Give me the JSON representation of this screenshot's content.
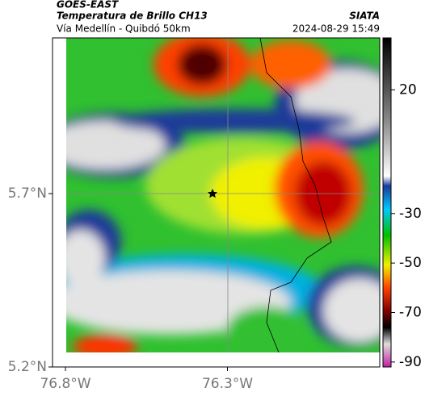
{
  "header": {
    "title": "GOES-EAST",
    "subtitle": "Temperatura de Brillo CH13",
    "region": "Vía Medellín - Quibdó 50km",
    "source": "SIATA",
    "datetime": "2024-08-29 15:49"
  },
  "map": {
    "xlim": [
      -76.84,
      -75.83
    ],
    "ylim": [
      5.2,
      6.149
    ],
    "xticks": [
      {
        "value": -76.8,
        "label": "76.8°W"
      },
      {
        "value": -76.3,
        "label": "76.3°W"
      }
    ],
    "yticks": [
      {
        "value": 5.7,
        "label": "5.7°N"
      },
      {
        "value": 5.2,
        "label": "5.2°N"
      }
    ]
  },
  "colorbar": {
    "lim": [
      41,
      -92
    ],
    "ticks": [
      20,
      -30,
      -50,
      -70,
      -90
    ]
  }
}
